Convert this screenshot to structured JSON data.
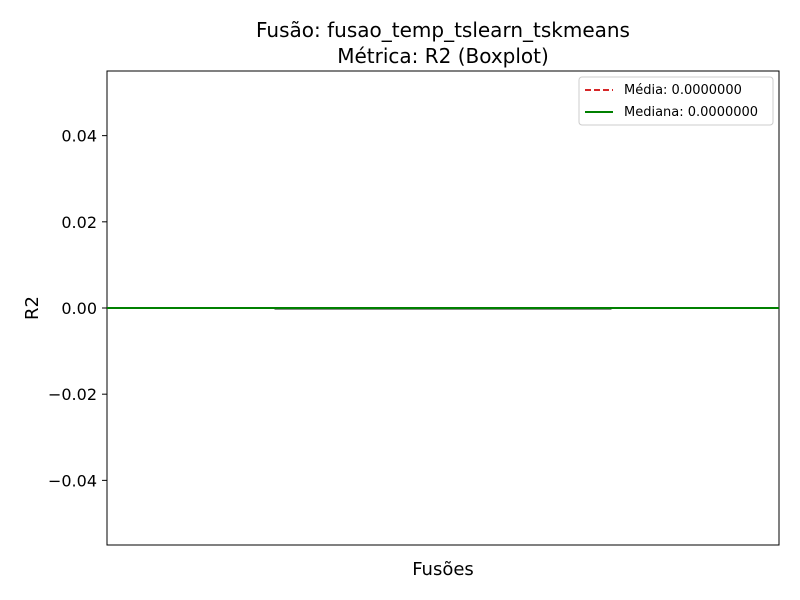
{
  "chart_data": {
    "type": "box",
    "title_line1": "Fusão: fusao_temp_tslearn_tskmeans",
    "title_line2": "Métrica: R2 (Boxplot)",
    "xlabel": "Fusões",
    "ylabel": "R2",
    "ylim": [
      -0.055,
      0.055
    ],
    "yticks": [
      {
        "value": 0.04,
        "label": "0.04"
      },
      {
        "value": 0.02,
        "label": "0.02"
      },
      {
        "value": 0.0,
        "label": "0.00"
      },
      {
        "value": -0.02,
        "label": "−0.02"
      },
      {
        "value": -0.04,
        "label": "−0.04"
      }
    ],
    "boxes": [
      {
        "min": 0.0,
        "q1": 0.0,
        "median": 0.0,
        "q3": 0.0,
        "max": 0.0
      }
    ],
    "mean_line": {
      "label": "Média: 0.0000000",
      "value": 0.0,
      "color": "#d62728"
    },
    "median_line": {
      "label": "Mediana: 0.0000000",
      "value": 0.0,
      "color": "#008000"
    },
    "box_color": "#888888",
    "legend_position": "upper-right",
    "grid": false
  }
}
